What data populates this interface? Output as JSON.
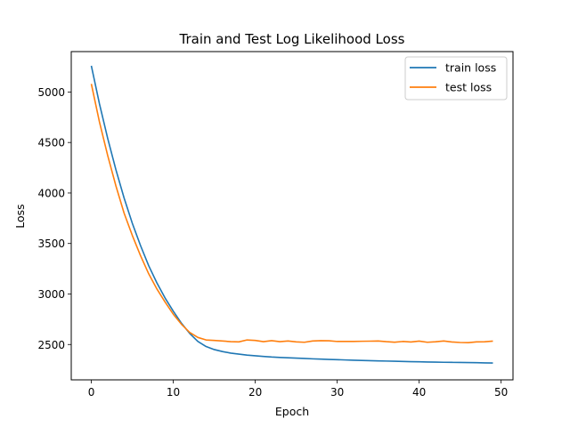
{
  "chart_data": {
    "type": "line",
    "title": "Train and Test Log Likelihood Loss",
    "xlabel": "Epoch",
    "ylabel": "Loss",
    "xlim": [
      -2.45,
      51.45
    ],
    "ylim": [
      2150,
      5400
    ],
    "xticks": [
      0,
      10,
      20,
      30,
      40,
      50
    ],
    "yticks": [
      2500,
      3000,
      3500,
      4000,
      4500,
      5000
    ],
    "grid": false,
    "legend_position": "top-right",
    "series": [
      {
        "name": "train loss",
        "color": "#1f77b4",
        "x": [
          0,
          1,
          2,
          3,
          4,
          5,
          6,
          7,
          8,
          9,
          10,
          11,
          12,
          13,
          14,
          15,
          16,
          17,
          18,
          19,
          20,
          21,
          22,
          23,
          24,
          25,
          26,
          27,
          28,
          29,
          30,
          31,
          32,
          33,
          34,
          35,
          36,
          37,
          38,
          39,
          40,
          41,
          42,
          43,
          44,
          45,
          46,
          47,
          48,
          49
        ],
        "y": [
          5260,
          4880,
          4540,
          4230,
          3950,
          3700,
          3480,
          3280,
          3110,
          2960,
          2830,
          2710,
          2610,
          2530,
          2480,
          2450,
          2430,
          2415,
          2405,
          2395,
          2388,
          2382,
          2376,
          2372,
          2369,
          2365,
          2362,
          2358,
          2355,
          2352,
          2350,
          2347,
          2344,
          2342,
          2340,
          2338,
          2336,
          2334,
          2332,
          2330,
          2329,
          2327,
          2326,
          2324,
          2323,
          2322,
          2321,
          2320,
          2318,
          2317
        ]
      },
      {
        "name": "test loss",
        "color": "#ff7f0e",
        "x": [
          0,
          1,
          2,
          3,
          4,
          5,
          6,
          7,
          8,
          9,
          10,
          11,
          12,
          13,
          14,
          15,
          16,
          17,
          18,
          19,
          20,
          21,
          22,
          23,
          24,
          25,
          26,
          27,
          28,
          29,
          30,
          31,
          32,
          33,
          34,
          35,
          36,
          37,
          38,
          39,
          40,
          41,
          42,
          43,
          44,
          45,
          46,
          47,
          48,
          49
        ],
        "y": [
          5080,
          4700,
          4370,
          4070,
          3800,
          3580,
          3380,
          3200,
          3050,
          2920,
          2800,
          2700,
          2620,
          2570,
          2545,
          2540,
          2535,
          2528,
          2526,
          2545,
          2540,
          2528,
          2538,
          2528,
          2535,
          2526,
          2522,
          2535,
          2538,
          2537,
          2530,
          2530,
          2530,
          2532,
          2533,
          2535,
          2528,
          2523,
          2530,
          2525,
          2534,
          2522,
          2527,
          2535,
          2525,
          2520,
          2518,
          2526,
          2527,
          2534
        ]
      }
    ]
  }
}
